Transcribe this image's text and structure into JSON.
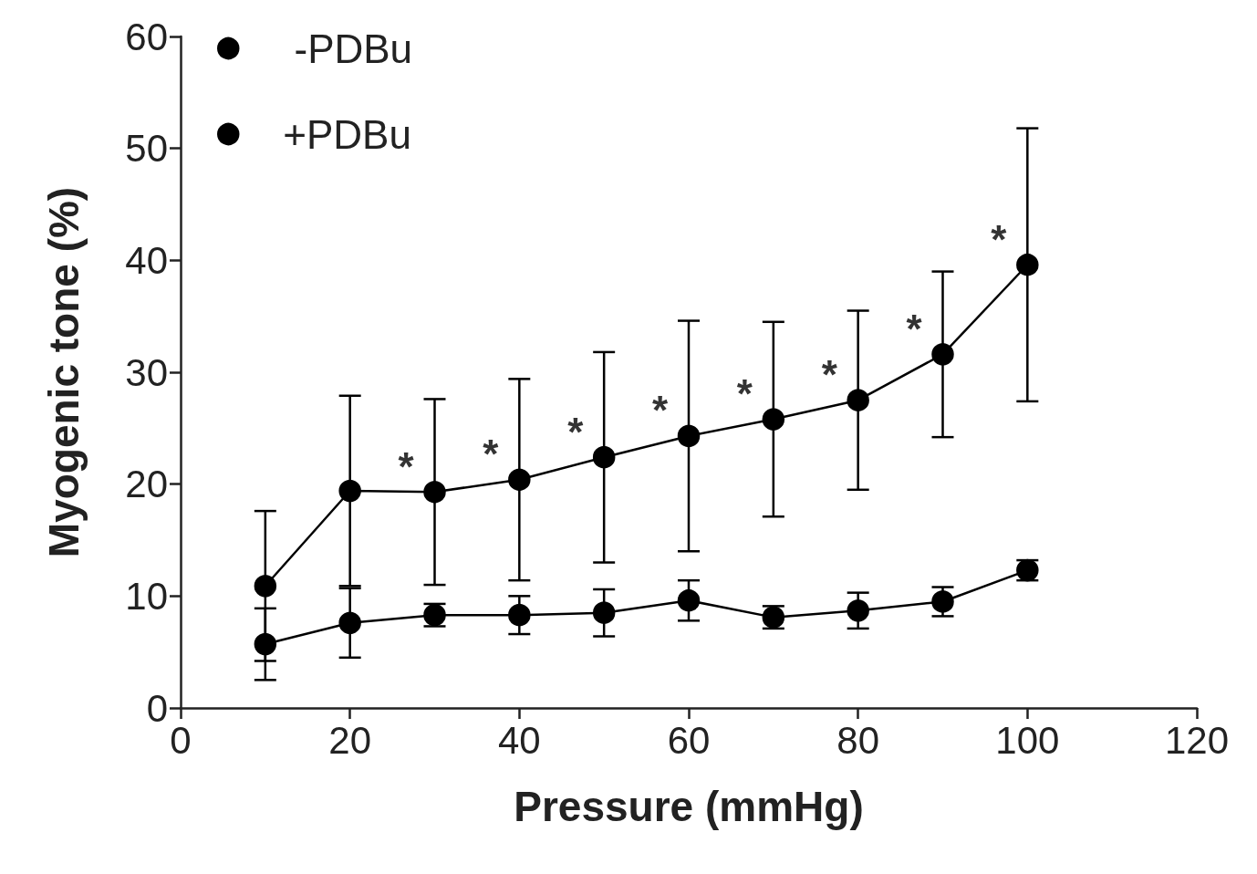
{
  "chart_data": {
    "type": "line",
    "xlabel": "Pressure (mmHg)",
    "ylabel": "Myogenic tone (%)",
    "x": [
      10,
      20,
      30,
      40,
      50,
      60,
      70,
      80,
      90,
      100
    ],
    "series": [
      {
        "name": " -PDBu",
        "color": "#000000",
        "values": [
          5.7,
          7.6,
          8.3,
          8.3,
          8.5,
          9.6,
          8.1,
          8.7,
          9.5,
          12.3
        ],
        "errors": [
          3.2,
          3.1,
          1.0,
          1.7,
          2.1,
          1.8,
          1.0,
          1.6,
          1.3,
          0.9
        ]
      },
      {
        "name": "+PDBu",
        "color": "#000000",
        "values": [
          10.9,
          19.4,
          19.3,
          20.4,
          22.4,
          24.3,
          25.8,
          27.5,
          31.6,
          39.6
        ],
        "errors": [
          6.7,
          8.5,
          8.3,
          9.0,
          9.4,
          10.3,
          8.7,
          8.0,
          7.4,
          12.2
        ]
      }
    ],
    "annotations": [
      {
        "text": "*",
        "x": 30,
        "y": 19.3
      },
      {
        "text": "*",
        "x": 40,
        "y": 20.4
      },
      {
        "text": "*",
        "x": 50,
        "y": 22.4
      },
      {
        "text": "*",
        "x": 60,
        "y": 24.3
      },
      {
        "text": "*",
        "x": 70,
        "y": 25.8
      },
      {
        "text": "*",
        "x": 80,
        "y": 27.5
      },
      {
        "text": "*",
        "x": 90,
        "y": 31.6
      },
      {
        "text": "*",
        "x": 100,
        "y": 39.6
      }
    ],
    "xlim": [
      0,
      120
    ],
    "xticks": [
      0,
      20,
      40,
      60,
      80,
      100,
      120
    ],
    "ylim": [
      0,
      60
    ],
    "yticks": [
      0,
      10,
      20,
      30,
      40,
      50,
      60
    ],
    "grid": false,
    "legend": "top left",
    "marker": "circle",
    "line_style": "solid"
  }
}
